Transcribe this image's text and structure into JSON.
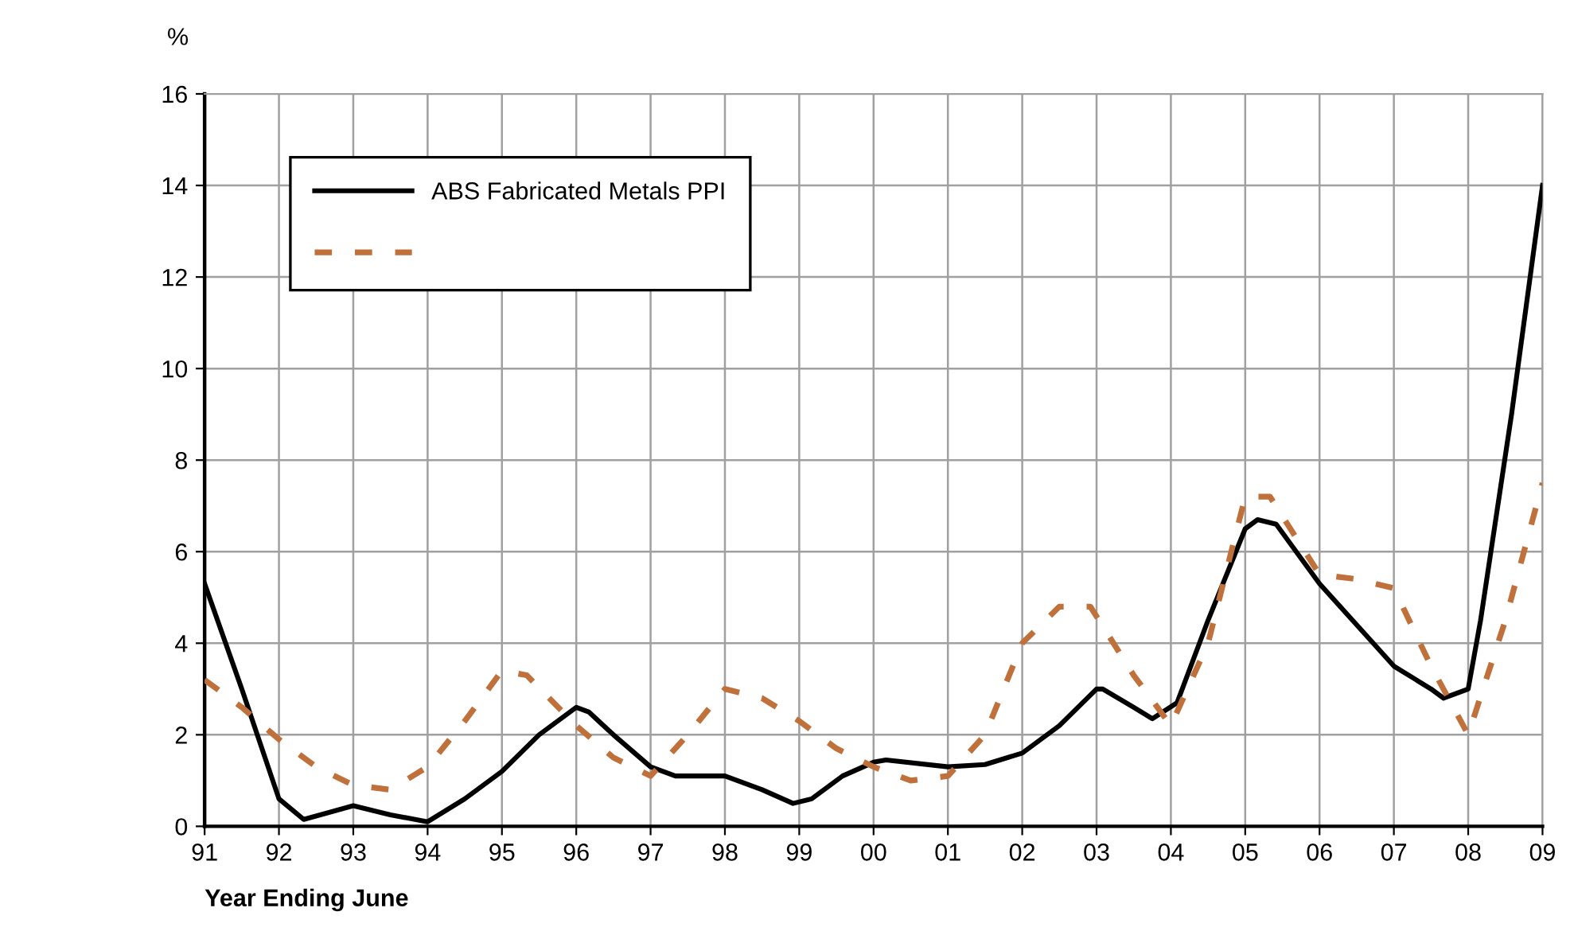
{
  "chart_data": {
    "type": "line",
    "xlabel": "Year Ending June",
    "ylabel": "%",
    "xlim": [
      "1991",
      "2009"
    ],
    "xticks": [
      {
        "value": "1991",
        "label": "91"
      },
      {
        "value": "1992",
        "label": "92"
      },
      {
        "value": "1993",
        "label": "93"
      },
      {
        "value": "1994",
        "label": "94"
      },
      {
        "value": "1995",
        "label": "95"
      },
      {
        "value": "1996",
        "label": "96"
      },
      {
        "value": "1997",
        "label": "97"
      },
      {
        "value": "1998",
        "label": "98"
      },
      {
        "value": "1999",
        "label": "99"
      },
      {
        "value": "2000",
        "label": "00"
      },
      {
        "value": "2001",
        "label": "01"
      },
      {
        "value": "2002",
        "label": "02"
      },
      {
        "value": "2003",
        "label": "03"
      },
      {
        "value": "2004",
        "label": "04"
      },
      {
        "value": "2005",
        "label": "05"
      },
      {
        "value": "2006",
        "label": "06"
      },
      {
        "value": "2007",
        "label": "07"
      },
      {
        "value": "2008",
        "label": "08"
      },
      {
        "value": "2009",
        "label": "09"
      }
    ],
    "ylim": [
      0,
      16
    ],
    "yticks": [
      0,
      2,
      4,
      6,
      8,
      10,
      12,
      14,
      16
    ],
    "grid": true,
    "legend": "top left",
    "series": [
      {
        "name": "ABS Fabricated Metals PPI",
        "color": "#000000",
        "line_style": "solid",
        "x": [
          "1991-01",
          "1991-07",
          "1992-01",
          "1992-05",
          "1993-01",
          "1993-07",
          "1994-01",
          "1994-07",
          "1995-01",
          "1995-07",
          "1996-01",
          "1996-03",
          "1996-07",
          "1997-01",
          "1997-05",
          "1998-01",
          "1998-07",
          "1998-12",
          "1999-03",
          "1999-08",
          "2000-01",
          "2000-03",
          "2001-01",
          "2001-07",
          "2002-01",
          "2002-07",
          "2003-01",
          "2003-02",
          "2003-07",
          "2003-10",
          "2004-02",
          "2004-07",
          "2005-01",
          "2005-03",
          "2005-06",
          "2006-01",
          "2006-07",
          "2007-01",
          "2007-07",
          "2007-09",
          "2008-01",
          "2008-03",
          "2008-08",
          "2009-01"
        ],
        "values": [
          5.3,
          3.0,
          0.6,
          0.15,
          0.45,
          0.25,
          0.1,
          0.6,
          1.2,
          2.0,
          2.6,
          2.5,
          2.0,
          1.3,
          1.1,
          1.1,
          0.8,
          0.5,
          0.6,
          1.1,
          1.4,
          1.45,
          1.3,
          1.35,
          1.6,
          2.2,
          3.0,
          3.0,
          2.6,
          2.35,
          2.7,
          4.5,
          6.5,
          6.7,
          6.6,
          5.3,
          4.4,
          3.5,
          3.0,
          2.8,
          3.0,
          4.5,
          9.0,
          14.0
        ]
      },
      {
        "color": "#c0703a",
        "line_style": "dashed",
        "x": [
          "1991-01",
          "1991-07",
          "1992-01",
          "1992-07",
          "1993-01",
          "1993-07",
          "1994-01",
          "1994-07",
          "1995-01",
          "1995-05",
          "1996-01",
          "1996-07",
          "1997-01",
          "1997-07",
          "1998-01",
          "1998-07",
          "1999-01",
          "1999-07",
          "2000-01",
          "2000-07",
          "2001-01",
          "2001-07",
          "2002-01",
          "2002-07",
          "2002-12",
          "2003-07",
          "2004-01",
          "2004-07",
          "2005-01",
          "2005-05",
          "2006-01",
          "2006-07",
          "2007-01",
          "2007-07",
          "2008-01",
          "2008-07",
          "2009-01"
        ],
        "values": [
          3.2,
          2.6,
          1.9,
          1.3,
          0.9,
          0.8,
          1.3,
          2.3,
          3.4,
          3.3,
          2.2,
          1.5,
          1.1,
          2.0,
          3.0,
          2.8,
          2.3,
          1.7,
          1.3,
          1.0,
          1.1,
          2.0,
          4.0,
          4.8,
          4.8,
          3.3,
          2.2,
          4.0,
          7.2,
          7.2,
          5.5,
          5.4,
          5.2,
          3.5,
          2.0,
          4.5,
          7.5
        ]
      }
    ]
  }
}
